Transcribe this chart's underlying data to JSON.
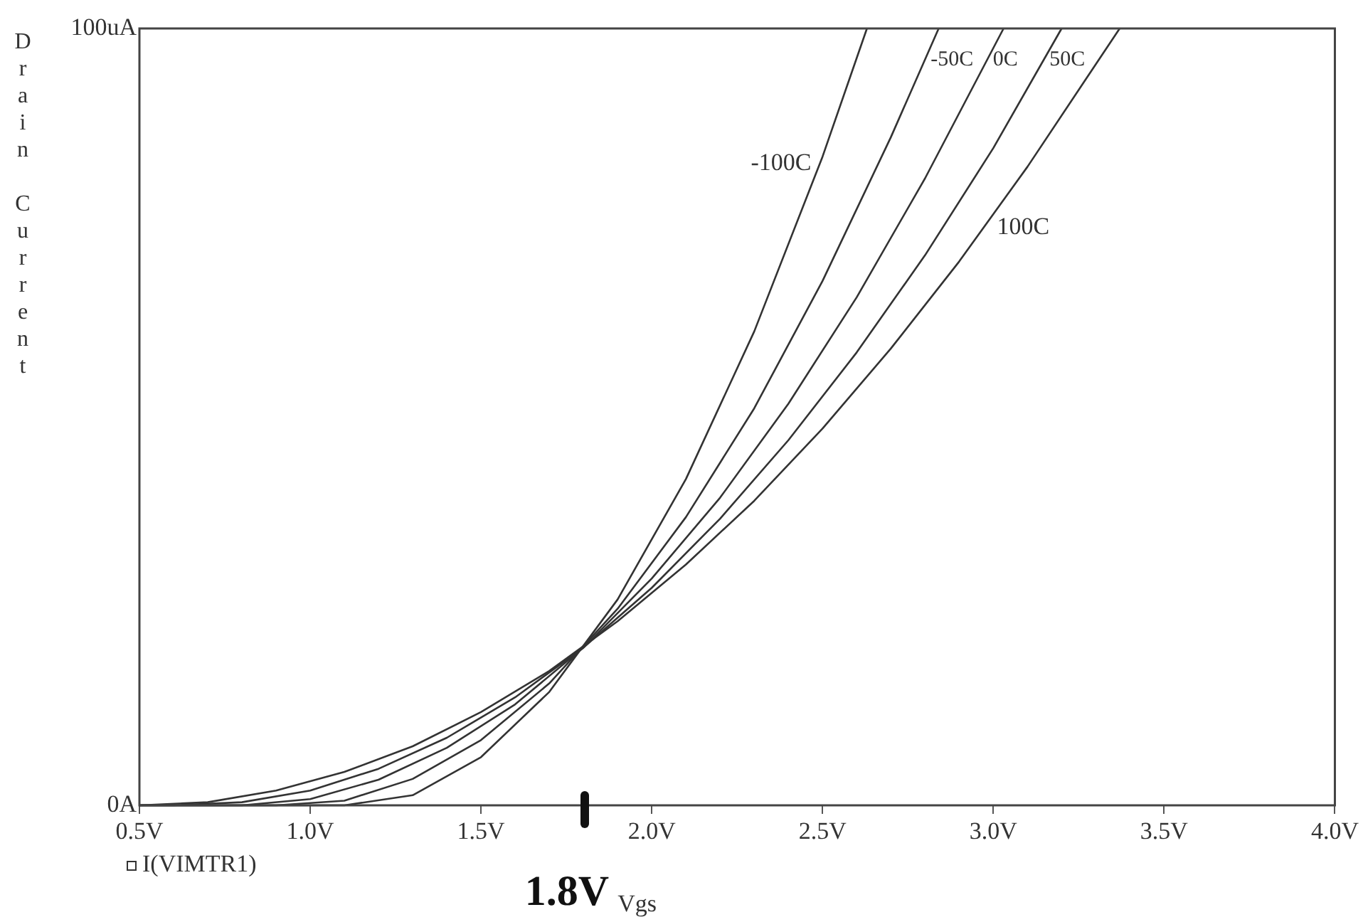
{
  "chart_data": {
    "type": "line",
    "xlabel": "Vgs",
    "ylabel": "Drain Current",
    "annotations": [
      "I(VIMTR1)",
      "1.8V"
    ],
    "xlim": [
      0.5,
      4.0
    ],
    "ylim": [
      0,
      100
    ],
    "xticks": [
      {
        "value": 0.5,
        "label": "0.5V"
      },
      {
        "value": 1.0,
        "label": "1.0V"
      },
      {
        "value": 1.5,
        "label": "1.5V"
      },
      {
        "value": 2.0,
        "label": "2.0V"
      },
      {
        "value": 2.5,
        "label": "2.5V"
      },
      {
        "value": 3.0,
        "label": "3.0V"
      },
      {
        "value": 3.5,
        "label": "3.5V"
      },
      {
        "value": 4.0,
        "label": "4.0V"
      }
    ],
    "yticks": [
      {
        "value": 0,
        "label": "0A"
      },
      {
        "value": 100,
        "label": "100uA"
      }
    ],
    "grid": false,
    "legend": false,
    "marker": "none",
    "line_style": "solid",
    "series": [
      {
        "name": "-100C",
        "color": "#333333",
        "x": [
          0.5,
          1.1,
          1.3,
          1.5,
          1.7,
          1.9,
          2.1,
          2.3,
          2.5,
          2.63
        ],
        "values": [
          0,
          0,
          1.3,
          6.2,
          14.6,
          26.5,
          42,
          61,
          83.5,
          100
        ]
      },
      {
        "name": "-50C",
        "color": "#333333",
        "x": [
          0.5,
          0.9,
          1.1,
          1.3,
          1.5,
          1.7,
          1.9,
          2.1,
          2.3,
          2.5,
          2.7,
          2.84
        ],
        "values": [
          0,
          0,
          0.6,
          3.4,
          8.4,
          15.7,
          25.3,
          37.1,
          51.1,
          67.5,
          86,
          100
        ]
      },
      {
        "name": "0C",
        "color": "#333333",
        "x": [
          0.5,
          0.8,
          1.0,
          1.2,
          1.4,
          1.6,
          1.8,
          2.0,
          2.2,
          2.4,
          2.6,
          2.8,
          3.03
        ],
        "values": [
          0,
          0,
          0.8,
          3.3,
          7.4,
          13,
          20.3,
          29.2,
          39.6,
          51.7,
          65.4,
          80.7,
          100
        ]
      },
      {
        "name": "50C",
        "color": "#333333",
        "x": [
          0.5,
          0.6,
          0.8,
          1.0,
          1.2,
          1.4,
          1.6,
          1.8,
          2.0,
          2.2,
          2.4,
          2.6,
          2.8,
          3.0,
          3.2
        ],
        "values": [
          0,
          0,
          0.4,
          1.9,
          4.7,
          8.7,
          13.9,
          20.3,
          28,
          36.9,
          47,
          58.3,
          70.8,
          84.6,
          100
        ]
      },
      {
        "name": "100C",
        "color": "#333333",
        "x": [
          0.5,
          0.7,
          0.9,
          1.1,
          1.3,
          1.5,
          1.7,
          1.9,
          2.1,
          2.3,
          2.5,
          2.7,
          2.9,
          3.1,
          3.37
        ],
        "values": [
          0,
          0.4,
          1.9,
          4.3,
          7.6,
          12,
          17.3,
          23.7,
          31,
          39.2,
          48.5,
          58.8,
          70,
          82.2,
          100
        ]
      }
    ]
  }
}
